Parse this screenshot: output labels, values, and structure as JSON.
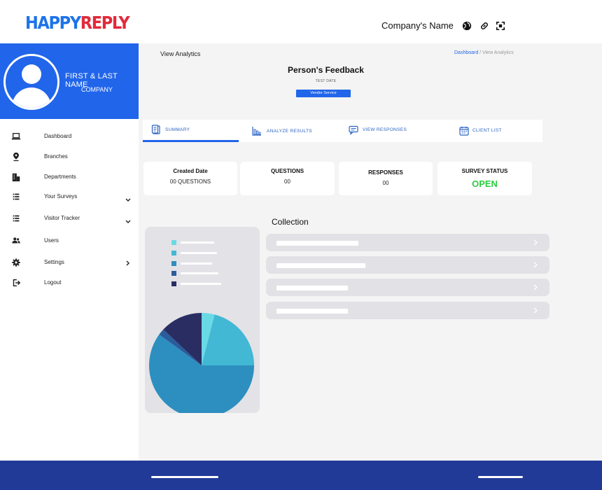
{
  "app": {
    "brand_part1": "HAPPY",
    "brand_part2": "REPLY",
    "company_name": "Company's Name"
  },
  "header_icons": [
    "globe-icon",
    "link-icon",
    "fullscreen-icon"
  ],
  "profile": {
    "name": "FIRST & LAST NAME",
    "company": "COMPANY"
  },
  "sidebar": {
    "items": [
      {
        "label": "Dashboard",
        "icon": "laptop-icon"
      },
      {
        "label": "Branches",
        "icon": "location-pin-icon"
      },
      {
        "label": "Departments",
        "icon": "building-icon"
      },
      {
        "label": "Your Surveys",
        "icon": "list-icon",
        "chevron": "down"
      },
      {
        "label": "Visitor Tracker",
        "icon": "list-icon",
        "chevron": "down"
      },
      {
        "label": "Users",
        "icon": "users-icon"
      },
      {
        "label": "Settings",
        "icon": "gear-icon",
        "chevron": "right"
      },
      {
        "label": "Logout",
        "icon": "logout-icon"
      }
    ]
  },
  "main": {
    "page_title": "View Analytics",
    "breadcrumb": {
      "link": "Dashboard",
      "current": " / View Analytics"
    },
    "feedback_title": "Person's Feedback",
    "test_date": "TEST DATE",
    "vendor_badge": "Vendor Service",
    "tabs": [
      {
        "label": "SUMMARY",
        "icon": "clipboard-icon",
        "active": true
      },
      {
        "label": "ANALYZE RESULTS",
        "icon": "bar-chart-icon",
        "active": false
      },
      {
        "label": "VIEW RESPONSES",
        "icon": "chat-icon",
        "active": false
      },
      {
        "label": "CLIENT LIST",
        "icon": "calendar-icon",
        "active": false
      }
    ],
    "stats": [
      {
        "label": "Created Date",
        "value": "00 QUESTIONS"
      },
      {
        "label": "QUESTIONS",
        "value": "00"
      },
      {
        "label": "RESPONSES",
        "value": "00"
      },
      {
        "label": "SURVEY STATUS",
        "value": "OPEN"
      }
    ],
    "collection_title": "Collection"
  },
  "colors": {
    "brand_blue": "#2165ea",
    "brand_red": "#e22a3b",
    "footer": "#213a97",
    "status_open": "#2ecc40",
    "pie": [
      "#6ad9e6",
      "#42b8d4",
      "#2d8fbf",
      "#2b5c9c",
      "#2a2d62"
    ]
  },
  "pie_values": [
    4,
    21,
    60,
    2,
    13
  ]
}
